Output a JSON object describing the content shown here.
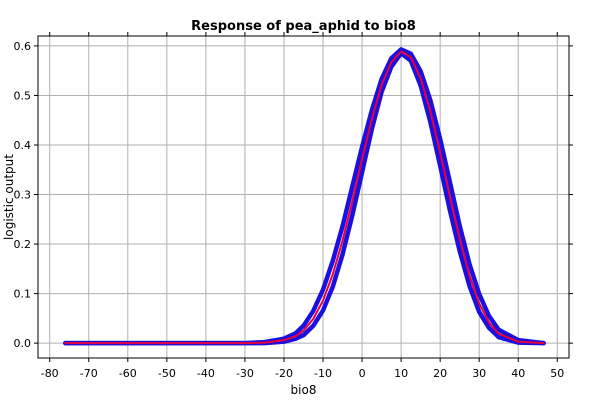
{
  "chart_data": {
    "type": "line",
    "title": "Response of pea_aphid to bio8",
    "xlabel": "bio8",
    "ylabel": "logistic output",
    "xlim": [
      -83,
      53
    ],
    "ylim": [
      -0.03,
      0.62
    ],
    "xticks": [
      -80,
      -70,
      -60,
      -50,
      -40,
      -30,
      -20,
      -10,
      0,
      10,
      20,
      30,
      40,
      50
    ],
    "yticks": [
      0.0,
      0.1,
      0.2,
      0.3,
      0.4,
      0.5,
      0.6
    ],
    "ytick_labels": [
      "0.0",
      "0.1",
      "0.2",
      "0.3",
      "0.4",
      "0.5",
      "0.6"
    ],
    "grid": true,
    "series": [
      {
        "role": "mean",
        "color": "#e8003a",
        "x": [
          -76,
          -60,
          -40,
          -30,
          -25,
          -20,
          -17,
          -15,
          -12.5,
          -10,
          -7.5,
          -5,
          -2.5,
          0,
          2.5,
          5,
          7.5,
          10,
          12.5,
          15,
          17.5,
          20,
          22.5,
          25,
          27.5,
          30,
          32.5,
          35,
          40,
          46.5
        ],
        "y": [
          0.0,
          0.0,
          0.0,
          0.0,
          0.001,
          0.006,
          0.014,
          0.025,
          0.049,
          0.086,
          0.139,
          0.207,
          0.287,
          0.371,
          0.452,
          0.521,
          0.567,
          0.589,
          0.577,
          0.535,
          0.468,
          0.385,
          0.296,
          0.211,
          0.137,
          0.08,
          0.042,
          0.019,
          0.003,
          0.0
        ]
      },
      {
        "role": "mean_plus_sd",
        "color": "#1a10e0",
        "x": [
          -76,
          -60,
          -40,
          -30,
          -25,
          -20,
          -17,
          -15,
          -12.5,
          -10,
          -7.5,
          -5,
          -2.5,
          0,
          2.5,
          5,
          7.5,
          10,
          12.5,
          15,
          17.5,
          20,
          22.5,
          25,
          27.5,
          30,
          32.5,
          35,
          40,
          46.5
        ],
        "y": [
          0.0,
          0.0,
          0.0,
          0.0,
          0.002,
          0.009,
          0.02,
          0.035,
          0.065,
          0.108,
          0.166,
          0.236,
          0.316,
          0.396,
          0.47,
          0.533,
          0.575,
          0.593,
          0.584,
          0.549,
          0.49,
          0.412,
          0.325,
          0.237,
          0.16,
          0.099,
          0.055,
          0.027,
          0.006,
          0.0
        ]
      },
      {
        "role": "mean_minus_sd",
        "color": "#1a10e0",
        "x": [
          -76,
          -60,
          -40,
          -30,
          -25,
          -20,
          -17,
          -15,
          -12.5,
          -10,
          -7.5,
          -5,
          -2.5,
          0,
          2.5,
          5,
          7.5,
          10,
          12.5,
          15,
          17.5,
          20,
          22.5,
          25,
          27.5,
          30,
          32.5,
          35,
          40,
          46.5
        ],
        "y": [
          0.0,
          0.0,
          0.0,
          0.0,
          0.0,
          0.003,
          0.009,
          0.016,
          0.035,
          0.066,
          0.114,
          0.179,
          0.258,
          0.345,
          0.432,
          0.507,
          0.558,
          0.585,
          0.57,
          0.52,
          0.446,
          0.358,
          0.268,
          0.186,
          0.116,
          0.063,
          0.031,
          0.012,
          0.001,
          0.0
        ]
      }
    ]
  }
}
